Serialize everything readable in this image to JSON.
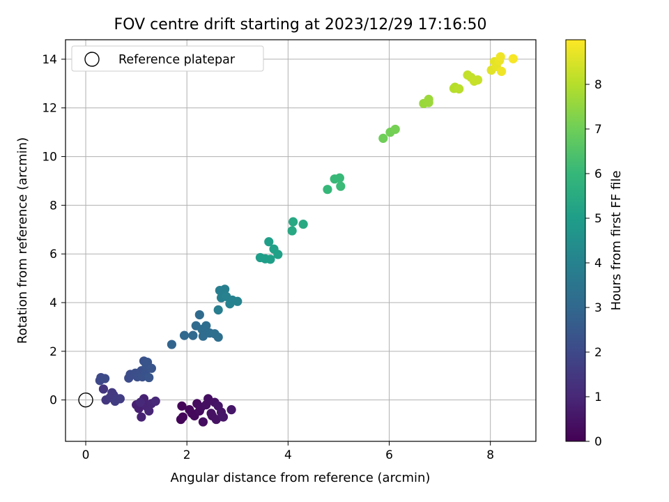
{
  "chart_data": {
    "type": "scatter",
    "title": "FOV centre drift starting at 2023/12/29 17:16:50",
    "xlabel": "Angular distance from reference (arcmin)",
    "ylabel": "Rotation from reference (arcmin)",
    "xlim": [
      -0.4,
      8.9
    ],
    "ylim": [
      -1.7,
      14.8
    ],
    "xticks": [
      0,
      2,
      4,
      6,
      8
    ],
    "yticks": [
      0,
      2,
      4,
      6,
      8,
      10,
      12,
      14
    ],
    "grid": true,
    "legend": {
      "position": "top-left",
      "label": "Reference platepar"
    },
    "reference_point": {
      "x": 0,
      "y": 0
    },
    "colorbar": {
      "label": "Hours from first FF file",
      "colormap": "viridis",
      "range": [
        0,
        9.0
      ],
      "ticks": [
        0,
        1,
        2,
        3,
        4,
        5,
        6,
        7,
        8
      ]
    },
    "colormap_stops": [
      "#440154",
      "#482878",
      "#3e4989",
      "#31688e",
      "#26828e",
      "#1f9e89",
      "#35b779",
      "#6ece58",
      "#b5de2b",
      "#fde725"
    ],
    "points": [
      {
        "x": 1.9,
        "y": -0.25,
        "h": 0.1
      },
      {
        "x": 1.88,
        "y": -0.8,
        "h": 0.1
      },
      {
        "x": 1.92,
        "y": -0.7,
        "h": 0.15
      },
      {
        "x": 2.05,
        "y": -0.4,
        "h": 0.15
      },
      {
        "x": 2.1,
        "y": -0.55,
        "h": 0.2
      },
      {
        "x": 2.15,
        "y": -0.65,
        "h": 0.2
      },
      {
        "x": 2.2,
        "y": -0.15,
        "h": 0.25
      },
      {
        "x": 2.25,
        "y": -0.45,
        "h": 0.25
      },
      {
        "x": 2.28,
        "y": -0.3,
        "h": 0.3
      },
      {
        "x": 2.32,
        "y": -0.9,
        "h": 0.3
      },
      {
        "x": 2.38,
        "y": -0.2,
        "h": 0.35
      },
      {
        "x": 2.42,
        "y": 0.05,
        "h": 0.35
      },
      {
        "x": 2.48,
        "y": -0.55,
        "h": 0.4
      },
      {
        "x": 2.5,
        "y": -0.65,
        "h": 0.4
      },
      {
        "x": 2.55,
        "y": -0.1,
        "h": 0.45
      },
      {
        "x": 2.58,
        "y": -0.8,
        "h": 0.45
      },
      {
        "x": 2.62,
        "y": -0.25,
        "h": 0.5
      },
      {
        "x": 2.68,
        "y": -0.5,
        "h": 0.5
      },
      {
        "x": 2.72,
        "y": -0.7,
        "h": 0.55
      },
      {
        "x": 2.88,
        "y": -0.4,
        "h": 0.55
      },
      {
        "x": 1.0,
        "y": -0.2,
        "h": 0.8
      },
      {
        "x": 1.05,
        "y": -0.35,
        "h": 0.8
      },
      {
        "x": 1.1,
        "y": -0.7,
        "h": 0.85
      },
      {
        "x": 1.15,
        "y": 0.05,
        "h": 0.85
      },
      {
        "x": 1.18,
        "y": -0.2,
        "h": 0.9
      },
      {
        "x": 1.22,
        "y": -0.3,
        "h": 0.9
      },
      {
        "x": 1.25,
        "y": -0.45,
        "h": 0.95
      },
      {
        "x": 1.3,
        "y": -0.15,
        "h": 0.95
      },
      {
        "x": 1.38,
        "y": -0.05,
        "h": 1.0
      },
      {
        "x": 1.08,
        "y": -0.1,
        "h": 1.0
      },
      {
        "x": 0.35,
        "y": 0.45,
        "h": 1.4
      },
      {
        "x": 0.4,
        "y": 0.0,
        "h": 1.45
      },
      {
        "x": 0.48,
        "y": 0.1,
        "h": 1.5
      },
      {
        "x": 0.52,
        "y": 0.3,
        "h": 1.5
      },
      {
        "x": 0.55,
        "y": 0.2,
        "h": 1.55
      },
      {
        "x": 0.58,
        "y": -0.05,
        "h": 1.6
      },
      {
        "x": 0.62,
        "y": 0.05,
        "h": 1.6
      },
      {
        "x": 0.68,
        "y": 0.05,
        "h": 1.65
      },
      {
        "x": 0.28,
        "y": 0.8,
        "h": 2.0
      },
      {
        "x": 0.3,
        "y": 0.92,
        "h": 2.0
      },
      {
        "x": 0.38,
        "y": 0.88,
        "h": 2.05
      },
      {
        "x": 0.85,
        "y": 0.9,
        "h": 2.1
      },
      {
        "x": 0.88,
        "y": 1.05,
        "h": 2.1
      },
      {
        "x": 0.98,
        "y": 1.1,
        "h": 2.15
      },
      {
        "x": 1.02,
        "y": 0.95,
        "h": 2.15
      },
      {
        "x": 1.05,
        "y": 1.0,
        "h": 2.2
      },
      {
        "x": 1.1,
        "y": 1.2,
        "h": 2.2
      },
      {
        "x": 1.12,
        "y": 0.95,
        "h": 2.25
      },
      {
        "x": 1.15,
        "y": 1.6,
        "h": 2.3
      },
      {
        "x": 1.18,
        "y": 1.1,
        "h": 2.3
      },
      {
        "x": 1.2,
        "y": 1.4,
        "h": 2.35
      },
      {
        "x": 1.22,
        "y": 1.55,
        "h": 2.35
      },
      {
        "x": 1.25,
        "y": 0.92,
        "h": 2.4
      },
      {
        "x": 1.3,
        "y": 1.3,
        "h": 2.4
      },
      {
        "x": 1.7,
        "y": 2.28,
        "h": 2.9
      },
      {
        "x": 1.95,
        "y": 2.65,
        "h": 3.0
      },
      {
        "x": 2.12,
        "y": 2.65,
        "h": 3.0
      },
      {
        "x": 2.18,
        "y": 3.05,
        "h": 3.1
      },
      {
        "x": 2.25,
        "y": 3.5,
        "h": 3.1
      },
      {
        "x": 2.3,
        "y": 2.9,
        "h": 3.15
      },
      {
        "x": 2.32,
        "y": 2.62,
        "h": 3.15
      },
      {
        "x": 2.38,
        "y": 3.05,
        "h": 3.2
      },
      {
        "x": 2.45,
        "y": 2.75,
        "h": 3.2
      },
      {
        "x": 2.55,
        "y": 2.72,
        "h": 3.25
      },
      {
        "x": 2.62,
        "y": 2.58,
        "h": 3.25
      },
      {
        "x": 2.62,
        "y": 3.7,
        "h": 3.8
      },
      {
        "x": 2.65,
        "y": 4.5,
        "h": 3.85
      },
      {
        "x": 2.68,
        "y": 4.2,
        "h": 3.9
      },
      {
        "x": 2.75,
        "y": 4.55,
        "h": 3.9
      },
      {
        "x": 2.78,
        "y": 4.25,
        "h": 3.95
      },
      {
        "x": 2.85,
        "y": 3.95,
        "h": 4.0
      },
      {
        "x": 2.9,
        "y": 4.1,
        "h": 4.0
      },
      {
        "x": 3.0,
        "y": 4.05,
        "h": 4.05
      },
      {
        "x": 3.45,
        "y": 5.85,
        "h": 5.0
      },
      {
        "x": 3.55,
        "y": 5.8,
        "h": 5.0
      },
      {
        "x": 3.62,
        "y": 6.5,
        "h": 5.05
      },
      {
        "x": 3.65,
        "y": 5.78,
        "h": 5.05
      },
      {
        "x": 3.72,
        "y": 6.2,
        "h": 5.1
      },
      {
        "x": 3.8,
        "y": 5.98,
        "h": 5.1
      },
      {
        "x": 4.08,
        "y": 6.95,
        "h": 5.4
      },
      {
        "x": 4.1,
        "y": 7.32,
        "h": 5.4
      },
      {
        "x": 4.3,
        "y": 7.22,
        "h": 5.45
      },
      {
        "x": 4.78,
        "y": 8.65,
        "h": 6.0
      },
      {
        "x": 4.92,
        "y": 9.08,
        "h": 6.05
      },
      {
        "x": 5.02,
        "y": 9.12,
        "h": 6.05
      },
      {
        "x": 5.04,
        "y": 8.78,
        "h": 6.1
      },
      {
        "x": 5.88,
        "y": 10.75,
        "h": 7.0
      },
      {
        "x": 6.02,
        "y": 11.0,
        "h": 7.05
      },
      {
        "x": 6.12,
        "y": 11.12,
        "h": 7.1
      },
      {
        "x": 6.68,
        "y": 12.18,
        "h": 7.6
      },
      {
        "x": 6.78,
        "y": 12.35,
        "h": 7.65
      },
      {
        "x": 6.78,
        "y": 12.22,
        "h": 7.65
      },
      {
        "x": 7.28,
        "y": 12.8,
        "h": 8.0
      },
      {
        "x": 7.3,
        "y": 12.85,
        "h": 8.0
      },
      {
        "x": 7.38,
        "y": 12.78,
        "h": 8.05
      },
      {
        "x": 7.55,
        "y": 13.35,
        "h": 8.2
      },
      {
        "x": 7.62,
        "y": 13.25,
        "h": 8.2
      },
      {
        "x": 7.68,
        "y": 13.1,
        "h": 8.25
      },
      {
        "x": 7.75,
        "y": 13.15,
        "h": 8.25
      },
      {
        "x": 8.02,
        "y": 13.55,
        "h": 8.6
      },
      {
        "x": 8.08,
        "y": 13.9,
        "h": 8.65
      },
      {
        "x": 8.12,
        "y": 13.7,
        "h": 8.7
      },
      {
        "x": 8.18,
        "y": 13.95,
        "h": 8.75
      },
      {
        "x": 8.2,
        "y": 14.1,
        "h": 8.8
      },
      {
        "x": 8.22,
        "y": 13.5,
        "h": 8.8
      },
      {
        "x": 8.45,
        "y": 14.02,
        "h": 8.9
      }
    ]
  }
}
